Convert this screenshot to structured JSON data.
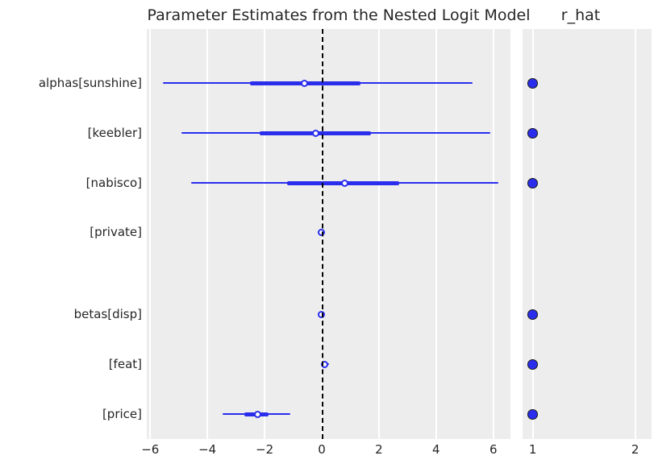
{
  "title": "Parameter Estimates from the Nested Logit Model",
  "panel_titles": {
    "rhat": "r_hat"
  },
  "colors": {
    "line_blue": "#2a2eec",
    "marker_fill": "#ffffff",
    "dot_fill": "#2a2eec",
    "dot_edge": "#1a1a1a",
    "panel_bg": "#ededed",
    "grid": "#ffffff",
    "zero_line": "#000000",
    "text": "#262626"
  },
  "chart_data": {
    "type": "forest",
    "title": "Parameter Estimates from the Nested Logit Model",
    "right_panel_title": "r_hat",
    "groups": [
      "alphas",
      "betas"
    ],
    "left_panel": {
      "xlim": [
        -6.12,
        6.6
      ],
      "xticks": [
        -6,
        -4,
        -2,
        0,
        2,
        4,
        6
      ],
      "xtick_labels": [
        "−6",
        "−4",
        "−2",
        "0",
        "2",
        "4",
        "6"
      ],
      "zero_reference_line": 0,
      "rows": [
        {
          "label": "alphas[sunshine]",
          "ci": [
            -5.55,
            5.27
          ],
          "iqr": [
            -2.5,
            1.35
          ],
          "median": -0.62
        },
        {
          "label": "[keebler]",
          "ci": [
            -4.9,
            5.9
          ],
          "iqr": [
            -2.17,
            1.72
          ],
          "median": -0.2
        },
        {
          "label": "[nabisco]",
          "ci": [
            -4.56,
            6.17
          ],
          "iqr": [
            -1.21,
            2.7
          ],
          "median": 0.79
        },
        {
          "label": "[private]",
          "ci": [
            -0.06,
            0.05
          ],
          "iqr": [
            -0.02,
            0.02
          ],
          "median": -0.01
        },
        {
          "label": "betas[disp]",
          "ci": [
            -0.03,
            0.03
          ],
          "iqr": [
            -0.01,
            0.01
          ],
          "median": 0.0
        },
        {
          "label": "[feat]",
          "ci": [
            0.02,
            0.26
          ],
          "iqr": [
            0.05,
            0.18
          ],
          "median": 0.11
        },
        {
          "label": "[price]",
          "ci": [
            -3.46,
            -1.1
          ],
          "iqr": [
            -2.71,
            -1.86
          ],
          "median": -2.23
        }
      ]
    },
    "right_panel": {
      "xlim": [
        0.9,
        2.16
      ],
      "xticks": [
        1,
        2
      ],
      "xtick_labels": [
        "1",
        "2"
      ],
      "rhat_values": [
        1.0,
        1.0,
        1.0,
        null,
        1.0,
        1.0,
        1.0
      ]
    }
  }
}
